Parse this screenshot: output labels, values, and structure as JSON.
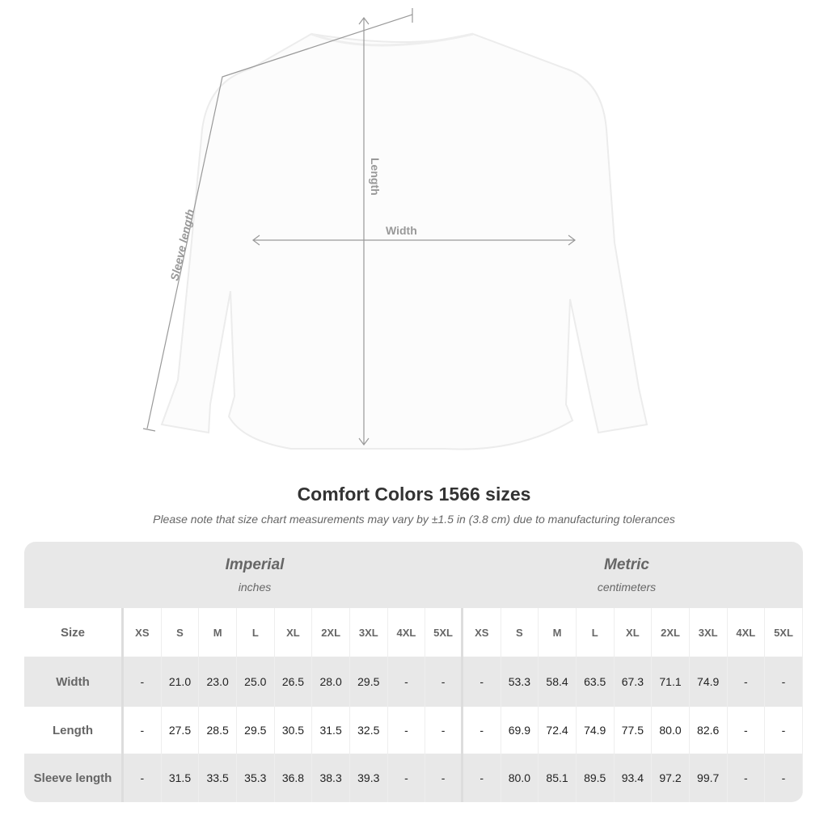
{
  "diagram": {
    "labels": {
      "sleeve": "Sleeve length",
      "length": "Length",
      "width": "Width"
    }
  },
  "title": "Comfort Colors 1566 sizes",
  "note": "Please note that size chart measurements may vary by ±1.5 in (3.8 cm) due to manufacturing tolerances",
  "table": {
    "imperial": {
      "name": "Imperial",
      "unit": "inches"
    },
    "metric": {
      "name": "Metric",
      "unit": "centimeters"
    },
    "size_label": "Size",
    "sizes": [
      "XS",
      "S",
      "M",
      "L",
      "XL",
      "2XL",
      "3XL",
      "4XL",
      "5XL"
    ],
    "rows": [
      {
        "label": "Width",
        "imperial": [
          "-",
          "21.0",
          "23.0",
          "25.0",
          "26.5",
          "28.0",
          "29.5",
          "-",
          "-"
        ],
        "metric": [
          "-",
          "53.3",
          "58.4",
          "63.5",
          "67.3",
          "71.1",
          "74.9",
          "-",
          "-"
        ]
      },
      {
        "label": "Length",
        "imperial": [
          "-",
          "27.5",
          "28.5",
          "29.5",
          "30.5",
          "31.5",
          "32.5",
          "-",
          "-"
        ],
        "metric": [
          "-",
          "69.9",
          "72.4",
          "74.9",
          "77.5",
          "80.0",
          "82.6",
          "-",
          "-"
        ]
      },
      {
        "label": "Sleeve length",
        "imperial": [
          "-",
          "31.5",
          "33.5",
          "35.3",
          "36.8",
          "38.3",
          "39.3",
          "-",
          "-"
        ],
        "metric": [
          "-",
          "80.0",
          "85.1",
          "89.5",
          "93.4",
          "97.2",
          "99.7",
          "-",
          "-"
        ]
      }
    ]
  }
}
